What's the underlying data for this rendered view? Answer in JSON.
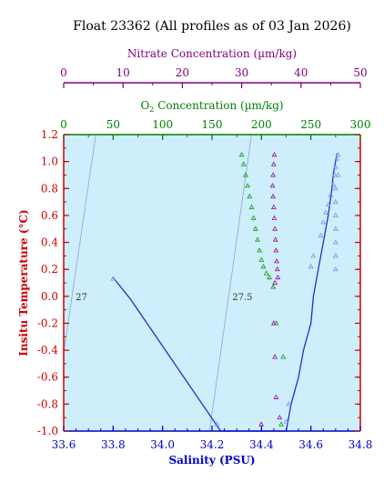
{
  "chart_data": {
    "type": "scatter",
    "title": "Float 23362  (All profiles as of 03 Jan 2026)",
    "xlabel": "Salinity (PSU)",
    "ylabel": "Insitu Temperature (°C)",
    "xlim": [
      33.6,
      34.8
    ],
    "ylim": [
      -1.0,
      1.2
    ],
    "x_ticks": [
      "33.6",
      "33.8",
      "34.0",
      "34.2",
      "34.4",
      "34.6",
      "34.8"
    ],
    "y_ticks": [
      "-1.0",
      "-0.8",
      "-0.6",
      "-0.4",
      "-0.2",
      "0.0",
      "0.2",
      "0.4",
      "0.6",
      "0.8",
      "1.0",
      "1.2"
    ],
    "grid": false,
    "background_color": "#cdeefa",
    "top_axes": [
      {
        "label": "O2 Concentration (µm/kg)",
        "label_main": "O",
        "label_sub": "2",
        "label_rest": " Concentration (µm/kg)",
        "color": "#008000",
        "range": [
          0,
          300
        ],
        "ticks": [
          "0",
          "50",
          "100",
          "150",
          "200",
          "250",
          "300"
        ]
      },
      {
        "label": "Nitrate Concentration (µm/kg)",
        "color": "#800080",
        "range": [
          0,
          50
        ],
        "ticks": [
          "0",
          "10",
          "20",
          "30",
          "40",
          "50"
        ]
      }
    ],
    "density_contours": [
      {
        "label": "27",
        "points": [
          [
            33.6,
            -0.42
          ],
          [
            33.73,
            1.2
          ]
        ]
      },
      {
        "label": "27.5",
        "points": [
          [
            34.19,
            -1.0
          ],
          [
            34.36,
            1.2
          ]
        ]
      }
    ],
    "series": [
      {
        "kind": "temperature_salinity",
        "color": "#1a33cc",
        "line": true,
        "points": [
          [
            33.8,
            0.14
          ],
          [
            33.83,
            0.07
          ],
          [
            33.87,
            -0.02
          ],
          [
            34.235,
            -1.0
          ],
          [
            34.5,
            -1.0
          ],
          [
            34.52,
            -0.8
          ],
          [
            34.55,
            -0.6
          ],
          [
            34.57,
            -0.4
          ],
          [
            34.6,
            -0.2
          ],
          [
            34.61,
            0.0
          ],
          [
            34.63,
            0.2
          ],
          [
            34.65,
            0.4
          ],
          [
            34.67,
            0.6
          ],
          [
            34.685,
            0.8
          ],
          [
            34.69,
            0.9
          ],
          [
            34.7,
            1.0
          ],
          [
            34.705,
            1.06
          ]
        ]
      },
      {
        "kind": "temperature_salinity_markers",
        "color": "#7b8ff0",
        "line": false,
        "points": [
          [
            33.8,
            0.13
          ],
          [
            34.22,
            -0.95
          ],
          [
            34.5,
            -0.93
          ],
          [
            34.51,
            -0.8
          ],
          [
            34.6,
            0.22
          ],
          [
            34.61,
            0.3
          ],
          [
            34.64,
            0.45
          ],
          [
            34.65,
            0.55
          ],
          [
            34.66,
            0.62
          ],
          [
            34.67,
            0.68
          ],
          [
            34.68,
            0.75
          ],
          [
            34.69,
            0.83
          ],
          [
            34.695,
            0.9
          ],
          [
            34.7,
            0.96
          ],
          [
            34.705,
            1.02
          ],
          [
            34.71,
            1.05
          ],
          [
            34.7,
            0.2
          ],
          [
            34.7,
            0.3
          ],
          [
            34.7,
            0.4
          ],
          [
            34.7,
            0.5
          ],
          [
            34.7,
            0.6
          ],
          [
            34.7,
            0.7
          ],
          [
            34.7,
            0.8
          ],
          [
            34.71,
            0.9
          ]
        ]
      },
      {
        "kind": "oxygen_profile",
        "color": "#00a000",
        "axis": "O2",
        "line": false,
        "points": [
          [
            180,
            1.05
          ],
          [
            182,
            0.98
          ],
          [
            184,
            0.9
          ],
          [
            186,
            0.82
          ],
          [
            188,
            0.74
          ],
          [
            190,
            0.66
          ],
          [
            192,
            0.58
          ],
          [
            194,
            0.5
          ],
          [
            196,
            0.42
          ],
          [
            198,
            0.34
          ],
          [
            200,
            0.27
          ],
          [
            202,
            0.22
          ],
          [
            205,
            0.17
          ],
          [
            208,
            0.14
          ],
          [
            212,
            0.07
          ],
          [
            220,
            -0.95
          ],
          [
            215,
            -0.2
          ],
          [
            222,
            -0.45
          ]
        ]
      },
      {
        "kind": "nitrate_profile",
        "color": "#a000a0",
        "axis": "Nitrate",
        "line": false,
        "points": [
          [
            35.5,
            1.05
          ],
          [
            35.4,
            0.98
          ],
          [
            35.3,
            0.9
          ],
          [
            35.2,
            0.82
          ],
          [
            35.3,
            0.74
          ],
          [
            35.4,
            0.66
          ],
          [
            35.5,
            0.58
          ],
          [
            35.6,
            0.5
          ],
          [
            35.7,
            0.42
          ],
          [
            35.8,
            0.34
          ],
          [
            35.9,
            0.26
          ],
          [
            36.0,
            0.2
          ],
          [
            36.1,
            0.14
          ],
          [
            35.6,
            0.1
          ],
          [
            35.4,
            -0.2
          ],
          [
            35.6,
            -0.45
          ],
          [
            35.8,
            -0.75
          ],
          [
            36.4,
            -0.9
          ],
          [
            33.3,
            -0.95
          ]
        ]
      }
    ]
  }
}
